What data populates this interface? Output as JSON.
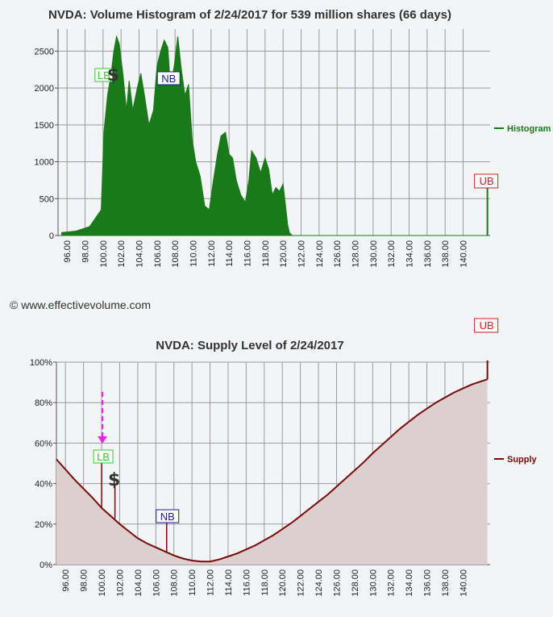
{
  "chart_data": [
    {
      "type": "area",
      "title": "NVDA: Volume Histogram of 2/24/2017 for 539 million shares (66 days)",
      "xlabel": "",
      "ylabel": "",
      "x_ticks": [
        "96.00",
        "98.00",
        "100.00",
        "102.00",
        "104.00",
        "106.00",
        "108.00",
        "110.00",
        "112.00",
        "114.00",
        "116.00",
        "118.00",
        "120.00",
        "122.00",
        "124.00",
        "126.00",
        "128.00",
        "130.00",
        "132.00",
        "134.00",
        "136.00",
        "138.00",
        "140.00"
      ],
      "xlim": [
        95,
        143
      ],
      "y_ticks": [
        "0",
        "500",
        "1000",
        "1500",
        "2000",
        "2500"
      ],
      "ylim": [
        0,
        2800
      ],
      "grid": true,
      "legend_position": "right",
      "series": [
        {
          "name": "Histogram",
          "color": "#1a7a1a",
          "x": [
            95.4,
            97.0,
            98.5,
            99.8,
            100.1,
            100.5,
            100.9,
            101.2,
            101.5,
            101.8,
            102.2,
            102.6,
            102.9,
            103.3,
            103.8,
            104.2,
            104.6,
            105.1,
            105.6,
            106.0,
            106.4,
            106.8,
            107.2,
            107.5,
            107.9,
            108.3,
            108.7,
            109.1,
            109.5,
            109.9,
            110.3,
            110.8,
            111.3,
            111.8,
            112.2,
            112.7,
            113.1,
            113.6,
            114.0,
            114.4,
            114.8,
            115.3,
            115.8,
            116.2,
            116.5,
            117.0,
            117.5,
            118.0,
            118.4,
            118.8,
            119.2,
            119.6,
            120.0,
            120.5,
            120.7,
            121.0,
            126.0,
            131.0,
            136.0,
            141.0,
            142.7
          ],
          "values": [
            40,
            60,
            120,
            350,
            1400,
            1900,
            2200,
            2500,
            2700,
            2600,
            2200,
            1700,
            2100,
            1700,
            2000,
            2200,
            1900,
            1500,
            1700,
            2300,
            2500,
            2650,
            2550,
            2000,
            2300,
            2700,
            2250,
            1900,
            2050,
            1300,
            1000,
            800,
            400,
            350,
            700,
            1100,
            1350,
            1400,
            1100,
            1050,
            750,
            550,
            450,
            750,
            1150,
            1050,
            850,
            1050,
            900,
            550,
            650,
            600,
            700,
            150,
            40,
            0,
            0,
            0,
            0,
            0,
            0
          ]
        }
      ],
      "annotations": [
        "LB",
        "NB",
        "UB",
        "$"
      ],
      "markers": {
        "LB": 100.0,
        "NB": 107.2,
        "UB": 142.7,
        "dollar": 101.3
      },
      "ub_bar_value": 700
    },
    {
      "type": "area",
      "title": "NVDA: Supply Level of 2/24/2017",
      "xlabel": "",
      "ylabel": "",
      "x_ticks": [
        "96.00",
        "98.00",
        "100.00",
        "102.00",
        "104.00",
        "106.00",
        "108.00",
        "110.00",
        "112.00",
        "114.00",
        "116.00",
        "118.00",
        "120.00",
        "122.00",
        "124.00",
        "126.00",
        "128.00",
        "130.00",
        "132.00",
        "134.00",
        "136.00",
        "138.00",
        "140.00"
      ],
      "xlim": [
        95,
        143
      ],
      "y_ticks": [
        "0%",
        "20%",
        "40%",
        "60%",
        "80%",
        "100%"
      ],
      "ylim": [
        0,
        100
      ],
      "grid": true,
      "legend_position": "right",
      "series": [
        {
          "name": "Supply",
          "color": "#7a0a0a",
          "x": [
            95,
            96,
            97,
            98,
            99,
            100,
            101,
            102,
            103,
            104,
            105,
            106,
            107,
            108,
            109,
            110,
            111,
            112,
            113,
            114,
            115,
            116,
            117,
            118,
            119,
            120,
            121,
            122,
            123,
            124,
            125,
            126,
            127,
            128,
            129,
            130,
            131,
            132,
            133,
            134,
            135,
            136,
            137,
            138,
            139,
            140,
            141,
            142,
            142.7
          ],
          "values": [
            52,
            47,
            42,
            37.5,
            33,
            28,
            24,
            20,
            16.5,
            13,
            10.5,
            8.5,
            6.5,
            4.5,
            3,
            2,
            1.5,
            1.5,
            2.5,
            4,
            5.5,
            7.5,
            9.5,
            12,
            14.5,
            17.5,
            20.5,
            24,
            27.5,
            31,
            34.5,
            38.5,
            42.5,
            46.5,
            50.5,
            55,
            59,
            63,
            67,
            70.5,
            74,
            77,
            80,
            82.5,
            85,
            87,
            89,
            90.5,
            91.5
          ]
        }
      ],
      "annotations": [
        "LB",
        "NB",
        "UB",
        "$"
      ],
      "markers": {
        "LB": 100.0,
        "NB": 107.2,
        "UB": 142.7,
        "dollar": 101.3
      }
    }
  ],
  "credit": "© www.effectivevolume.com",
  "labels": {
    "lb": "LB",
    "nb": "NB",
    "ub": "UB",
    "dollar": "$"
  },
  "colors": {
    "histogram": "#1a7a1a",
    "supply_line": "#7a0a0a",
    "supply_fill": "#dccfcf",
    "lb": "#33cc33",
    "nb": "#1a1a99",
    "ub": "#cc2222",
    "arrow": "#ee22ee"
  }
}
